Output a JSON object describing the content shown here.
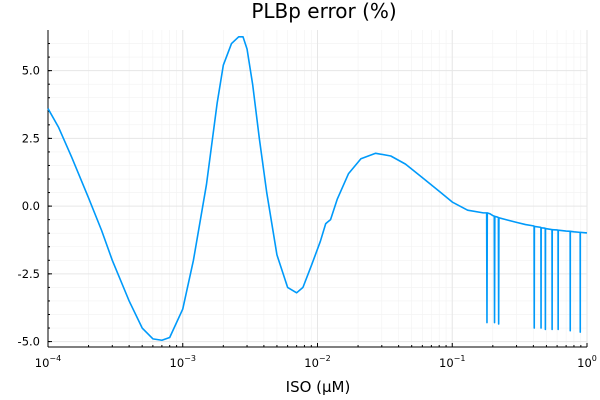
{
  "chart_data": {
    "type": "line",
    "title": "PLBp error (%)",
    "xlabel": "ISO (μM)",
    "ylabel": "",
    "xscale": "log",
    "xlim": [
      0.0001,
      1
    ],
    "ylim": [
      -5.2,
      6.5
    ],
    "grid": true,
    "legend": "none",
    "colors": {
      "series": "#009AFA",
      "axis": "#000000",
      "grid": "#E6E6E6"
    },
    "x_ticks": [
      {
        "base": "10",
        "exp": "−4"
      },
      {
        "base": "10",
        "exp": "−3"
      },
      {
        "base": "10",
        "exp": "−2"
      },
      {
        "base": "10",
        "exp": "−1"
      },
      {
        "base": "10",
        "exp": "0"
      }
    ],
    "x_tick_values": [
      0.0001,
      0.001,
      0.01,
      0.1,
      1
    ],
    "y_ticks": [
      "-5.0",
      "-2.5",
      "0.0",
      "2.5",
      "5.0"
    ],
    "y_tick_values": [
      -5,
      -2.5,
      0,
      2.5,
      5
    ],
    "series": [
      {
        "x": [
          0.0001,
          0.00012,
          0.00015,
          0.0002,
          0.00025,
          0.0003,
          0.0004,
          0.0005,
          0.0006,
          0.0007,
          0.0008,
          0.001,
          0.0012,
          0.0015,
          0.0018,
          0.002,
          0.0023,
          0.0026,
          0.0028,
          0.003,
          0.0033,
          0.0037,
          0.0042,
          0.005,
          0.006,
          0.007,
          0.0078,
          0.009,
          0.0105,
          0.0115,
          0.0118,
          0.0125,
          0.014,
          0.017,
          0.021,
          0.027,
          0.035,
          0.045,
          0.06,
          0.08,
          0.1,
          0.13,
          0.17,
          0.18,
          0.181,
          0.182,
          0.19,
          0.2,
          0.205,
          0.206,
          0.207,
          0.215,
          0.22,
          0.221,
          0.222,
          0.25,
          0.3,
          0.35,
          0.4,
          0.405,
          0.406,
          0.407,
          0.45,
          0.455,
          0.456,
          0.457,
          0.48,
          0.49,
          0.491,
          0.492,
          0.54,
          0.55,
          0.551,
          0.552,
          0.6,
          0.61,
          0.611,
          0.612,
          0.7,
          0.75,
          0.751,
          0.752,
          0.8,
          0.85,
          0.89,
          0.891,
          0.892,
          0.9,
          0.95,
          1.0
        ],
        "y": [
          3.6,
          2.9,
          1.8,
          0.3,
          -0.9,
          -2.0,
          -3.5,
          -4.5,
          -4.9,
          -4.95,
          -4.85,
          -3.8,
          -2.0,
          0.8,
          3.8,
          5.2,
          6.0,
          6.25,
          6.25,
          5.8,
          4.5,
          2.5,
          0.5,
          -1.8,
          -3.0,
          -3.2,
          -3.0,
          -2.2,
          -1.3,
          -0.65,
          -0.6,
          -0.5,
          0.25,
          1.2,
          1.75,
          1.95,
          1.85,
          1.55,
          1.05,
          0.55,
          0.15,
          -0.15,
          -0.25,
          -0.25,
          -4.3,
          -0.25,
          -0.28,
          -0.35,
          -0.37,
          -4.3,
          -0.38,
          -0.4,
          -0.42,
          -4.35,
          -0.43,
          -0.5,
          -0.6,
          -0.68,
          -0.73,
          -0.74,
          -4.5,
          -0.75,
          -0.78,
          -0.79,
          -4.5,
          -0.8,
          -0.81,
          -0.82,
          -4.55,
          -0.83,
          -0.86,
          -0.87,
          -4.55,
          -0.87,
          -0.88,
          -0.89,
          -4.55,
          -0.89,
          -0.92,
          -0.93,
          -4.6,
          -0.93,
          -0.95,
          -0.96,
          -0.97,
          -4.65,
          -0.97,
          -0.97,
          -0.98,
          -0.99
        ]
      }
    ]
  }
}
